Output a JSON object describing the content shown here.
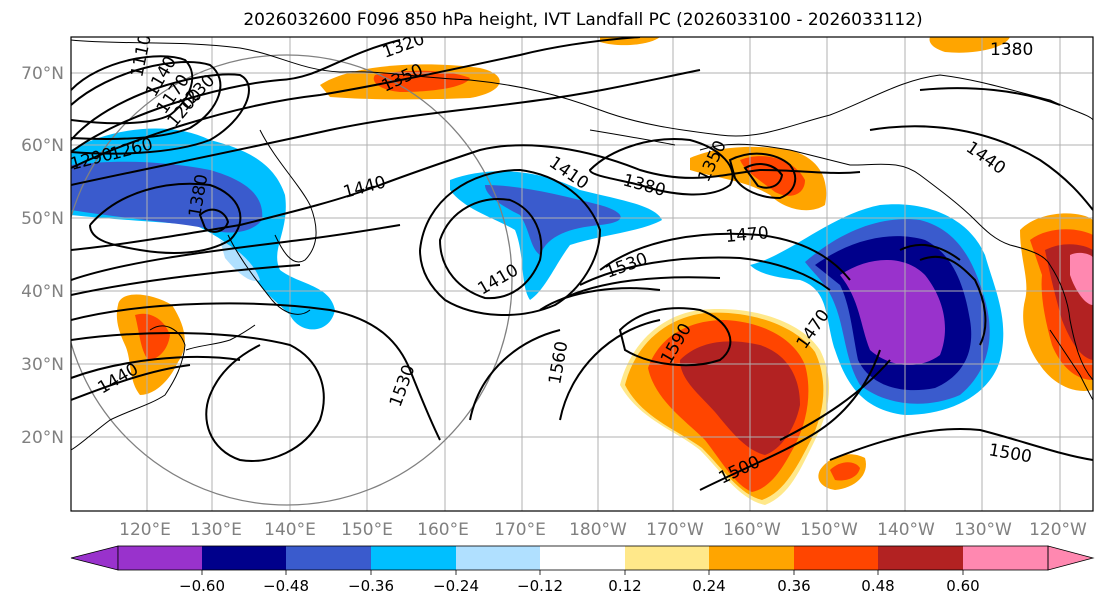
{
  "title": "2026032600 F096 850 hPa height, IVT Landfall PC (2026033100 - 2026033112)",
  "map": {
    "lon_labels": [
      "120°E",
      "130°E",
      "140°E",
      "150°E",
      "160°E",
      "170°E",
      "180°W",
      "170°W",
      "160°W",
      "150°W",
      "140°W",
      "130°W",
      "120°W"
    ],
    "lat_labels": [
      "70°N",
      "60°N",
      "50°N",
      "40°N",
      "30°N",
      "20°N"
    ],
    "contour_labels": [
      {
        "text": "1110"
      },
      {
        "text": "1140"
      },
      {
        "text": "1170"
      },
      {
        "text": "1200"
      },
      {
        "text": "1230"
      },
      {
        "text": "1290"
      },
      {
        "text": "1260"
      },
      {
        "text": "1320"
      },
      {
        "text": "1350"
      },
      {
        "text": "1380"
      },
      {
        "text": "1380"
      },
      {
        "text": "1440"
      },
      {
        "text": "1410"
      },
      {
        "text": "1380"
      },
      {
        "text": "1350"
      },
      {
        "text": "1470"
      },
      {
        "text": "1530"
      },
      {
        "text": "1410"
      },
      {
        "text": "1440"
      },
      {
        "text": "1530"
      },
      {
        "text": "1560"
      },
      {
        "text": "1590"
      },
      {
        "text": "1470"
      },
      {
        "text": "1500"
      },
      {
        "text": "1500"
      },
      {
        "text": "1440"
      },
      {
        "text": "1380"
      },
      {
        "text": "1440"
      }
    ]
  },
  "colorbar": {
    "tick_labels": [
      "−0.60",
      "−0.48",
      "−0.36",
      "−0.24",
      "−0.12",
      "0.12",
      "0.24",
      "0.36",
      "0.48",
      "0.60"
    ],
    "colors": [
      "#9932cc",
      "#00008b",
      "#3a5bcd",
      "#00bfff",
      "#b0e0ff",
      "#ffffff",
      "#ffe88a",
      "#ffa500",
      "#ff4500",
      "#b22222",
      "#ff88b0"
    ]
  },
  "colors": {
    "land_line": "#000000",
    "grid": "#b0b0b0",
    "axis_label": "#808080"
  }
}
